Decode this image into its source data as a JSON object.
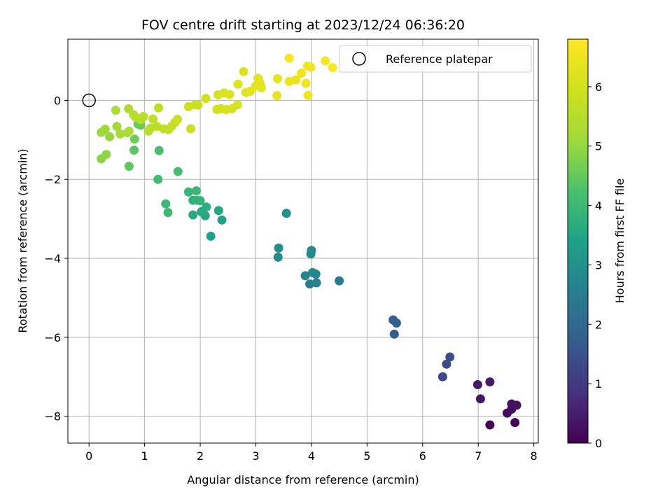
{
  "chart_data": {
    "type": "scatter",
    "title": "FOV centre drift starting at 2023/12/24 06:36:20",
    "xlabel": "Angular distance from reference (arcmin)",
    "ylabel": "Rotation from reference (arcmin)",
    "xlim": [
      -0.38,
      8.08
    ],
    "ylim": [
      -8.68,
      1.55
    ],
    "xticks": [
      0,
      1,
      2,
      3,
      4,
      5,
      6,
      7,
      8
    ],
    "yticks": [
      0,
      -2,
      -4,
      -6,
      -8
    ],
    "xtick_labels": [
      "0",
      "1",
      "2",
      "3",
      "4",
      "5",
      "6",
      "7",
      "8"
    ],
    "ytick_labels": [
      "0",
      "−2",
      "−4",
      "−6",
      "−8"
    ],
    "grid": true,
    "colormap": "viridis",
    "colorbar": {
      "label": "Hours from first FF file",
      "range": [
        0,
        6.8
      ],
      "ticks": [
        0,
        1,
        2,
        3,
        4,
        5,
        6
      ],
      "tick_labels": [
        "0",
        "1",
        "2",
        "3",
        "4",
        "5",
        "6"
      ]
    },
    "legend": {
      "position": "top-right",
      "entries": [
        "Reference platepar"
      ]
    },
    "reference_point": {
      "x": 0,
      "y": 0
    },
    "points": [
      [
        7.21,
        -8.22,
        0.05
      ],
      [
        7.66,
        -8.16,
        0.1
      ],
      [
        7.52,
        -7.92,
        0.15
      ],
      [
        7.6,
        -7.82,
        0.2
      ],
      [
        7.6,
        -7.69,
        0.25
      ],
      [
        7.69,
        -7.72,
        0.3
      ],
      [
        7.04,
        -7.56,
        0.35
      ],
      [
        6.99,
        -7.2,
        0.4
      ],
      [
        7.21,
        -7.13,
        0.45
      ],
      [
        6.36,
        -7.0,
        1.3
      ],
      [
        6.43,
        -6.68,
        1.35
      ],
      [
        6.49,
        -6.5,
        1.4
      ],
      [
        5.49,
        -5.92,
        1.75
      ],
      [
        5.47,
        -5.56,
        1.8
      ],
      [
        5.53,
        -5.64,
        1.85
      ],
      [
        4.5,
        -4.57,
        2.5
      ],
      [
        3.97,
        -4.65,
        2.55
      ],
      [
        4.09,
        -4.62,
        2.6
      ],
      [
        3.89,
        -4.44,
        2.65
      ],
      [
        4.08,
        -4.4,
        2.7
      ],
      [
        4.02,
        -4.36,
        2.75
      ],
      [
        3.99,
        -3.89,
        2.8
      ],
      [
        4.0,
        -3.8,
        2.85
      ],
      [
        3.4,
        -3.97,
        2.9
      ],
      [
        3.41,
        -3.74,
        2.95
      ],
      [
        3.55,
        -2.86,
        3.0
      ],
      [
        2.19,
        -3.44,
        3.4
      ],
      [
        2.39,
        -3.03,
        3.45
      ],
      [
        2.33,
        -2.79,
        3.5
      ],
      [
        2.09,
        -2.92,
        3.55
      ],
      [
        2.02,
        -2.82,
        3.6
      ],
      [
        1.87,
        -2.9,
        3.65
      ],
      [
        2.11,
        -2.7,
        3.7
      ],
      [
        1.87,
        -2.53,
        3.75
      ],
      [
        1.94,
        -2.53,
        3.8
      ],
      [
        2.0,
        -2.54,
        3.85
      ],
      [
        1.79,
        -2.32,
        3.9
      ],
      [
        1.93,
        -2.29,
        3.95
      ],
      [
        1.38,
        -2.62,
        4.0
      ],
      [
        1.42,
        -2.84,
        4.05
      ],
      [
        1.24,
        -2.0,
        4.1
      ],
      [
        1.6,
        -1.8,
        4.15
      ],
      [
        1.26,
        -1.27,
        4.2
      ],
      [
        0.81,
        -1.26,
        4.4
      ],
      [
        0.72,
        -1.67,
        4.45
      ],
      [
        0.93,
        -0.63,
        4.5
      ],
      [
        0.88,
        -0.6,
        4.55
      ],
      [
        0.82,
        -0.98,
        4.6
      ],
      [
        0.22,
        -1.48,
        4.9
      ],
      [
        0.31,
        -1.37,
        4.95
      ],
      [
        0.37,
        -0.92,
        5.0
      ],
      [
        0.22,
        -0.81,
        5.05
      ],
      [
        0.29,
        -0.73,
        5.1
      ],
      [
        0.5,
        -0.66,
        5.15
      ],
      [
        0.56,
        -0.85,
        5.2
      ],
      [
        0.69,
        -0.82,
        5.25
      ],
      [
        0.72,
        -0.78,
        5.3
      ],
      [
        0.48,
        -0.25,
        5.35
      ],
      [
        0.71,
        -0.21,
        5.4
      ],
      [
        0.8,
        -0.36,
        5.45
      ],
      [
        0.84,
        -0.43,
        5.5
      ],
      [
        0.93,
        -0.49,
        5.5
      ],
      [
        0.98,
        -0.41,
        5.55
      ],
      [
        1.07,
        -0.78,
        5.55
      ],
      [
        1.11,
        -0.7,
        5.6
      ],
      [
        1.22,
        -0.66,
        5.6
      ],
      [
        1.25,
        -0.19,
        5.65
      ],
      [
        1.15,
        -0.47,
        5.65
      ],
      [
        1.34,
        -0.72,
        5.7
      ],
      [
        1.43,
        -0.74,
        5.7
      ],
      [
        1.49,
        -0.65,
        5.75
      ],
      [
        1.55,
        -0.55,
        5.75
      ],
      [
        1.59,
        -0.48,
        5.8
      ],
      [
        1.83,
        -0.72,
        5.8
      ],
      [
        1.91,
        -0.11,
        5.85
      ],
      [
        1.96,
        -0.12,
        5.85
      ],
      [
        1.79,
        -0.16,
        5.9
      ],
      [
        2.1,
        0.05,
        5.95
      ],
      [
        2.3,
        -0.23,
        6.0
      ],
      [
        2.37,
        -0.21,
        6.0
      ],
      [
        2.47,
        -0.23,
        6.05
      ],
      [
        2.57,
        -0.21,
        6.05
      ],
      [
        2.67,
        -0.11,
        6.1
      ],
      [
        2.32,
        0.14,
        6.1
      ],
      [
        2.43,
        0.19,
        6.15
      ],
      [
        2.53,
        0.15,
        6.15
      ],
      [
        2.78,
        0.73,
        6.2
      ],
      [
        2.68,
        0.41,
        6.2
      ],
      [
        2.82,
        0.2,
        6.25
      ],
      [
        2.9,
        0.23,
        6.25
      ],
      [
        3.0,
        0.37,
        6.3
      ],
      [
        3.04,
        0.56,
        6.3
      ],
      [
        3.08,
        0.43,
        6.35
      ],
      [
        3.1,
        0.32,
        6.35
      ],
      [
        3.38,
        0.12,
        6.4
      ],
      [
        3.39,
        0.55,
        6.4
      ],
      [
        3.6,
        0.48,
        6.45
      ],
      [
        3.72,
        0.52,
        6.45
      ],
      [
        3.82,
        0.69,
        6.5
      ],
      [
        3.9,
        0.43,
        6.5
      ],
      [
        3.94,
        0.13,
        6.55
      ],
      [
        3.93,
        0.87,
        6.55
      ],
      [
        3.99,
        0.84,
        6.6
      ],
      [
        3.6,
        1.07,
        6.65
      ],
      [
        4.25,
        1.0,
        6.7
      ],
      [
        4.38,
        0.83,
        6.75
      ]
    ]
  }
}
